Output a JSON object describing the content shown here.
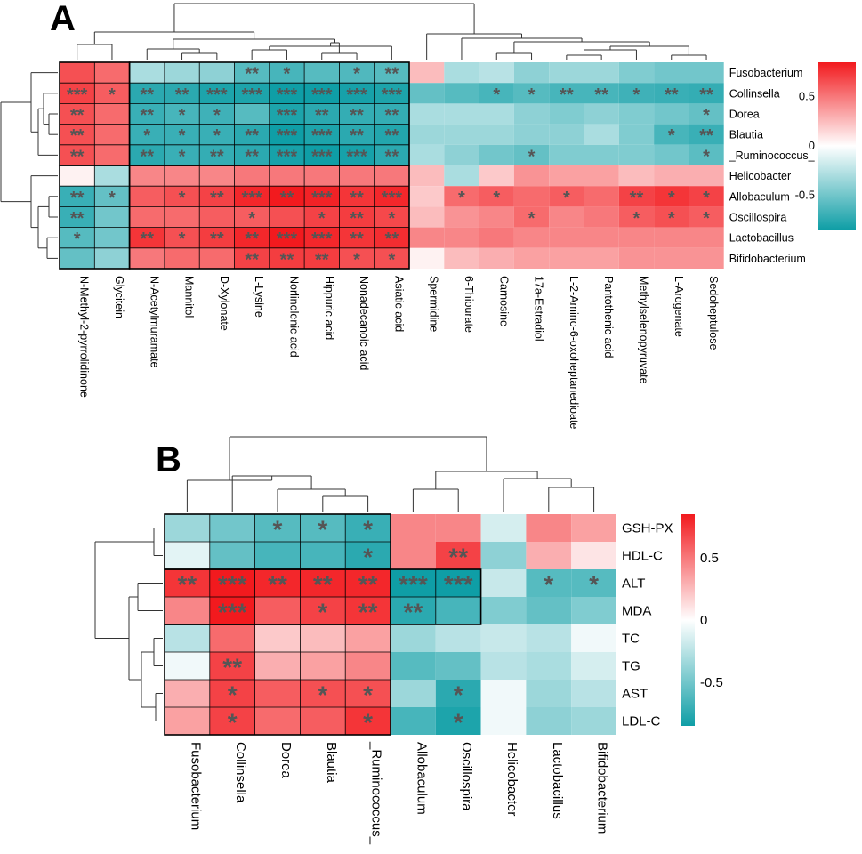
{
  "chart_data": [
    {
      "type": "heatmap",
      "panel": "A",
      "rows": [
        "Fusobacterium",
        "Collinsella",
        "Dorea",
        "Blautia",
        "_Ruminococcus_",
        "Helicobacter",
        "Allobaculum",
        "Oscillospira",
        "Lactobacillus",
        "Bifidobacterium"
      ],
      "columns": [
        "N-Methyl-2-pyrrolidinone",
        "Glycitein",
        "N-Acetylmuramate",
        "Mannitol",
        "D-Xylonate",
        "L-Lysine",
        "Norlinolenic acid",
        "Hippuric acid",
        "Nonadecanoic acid",
        "Asiatic acid",
        "Spermidine",
        "6-Thiourate",
        "Carnosine",
        "17a-Estradiol",
        "L-2-Amino-6-oxoheptanedioate",
        "Pantothenic acid",
        "Methylselenopyruvate",
        "L-Arogenate",
        "Sedoheptulose"
      ],
      "values": [
        [
          0.65,
          0.55,
          -0.3,
          -0.35,
          -0.4,
          -0.6,
          -0.65,
          -0.6,
          -0.62,
          -0.6,
          0.25,
          -0.3,
          -0.25,
          -0.4,
          -0.35,
          -0.35,
          -0.45,
          -0.5,
          -0.5
        ],
        [
          0.7,
          0.6,
          -0.75,
          -0.75,
          -0.8,
          -0.8,
          -0.85,
          -0.85,
          -0.82,
          -0.8,
          -0.55,
          -0.6,
          -0.65,
          -0.6,
          -0.65,
          -0.65,
          -0.68,
          -0.7,
          -0.72
        ],
        [
          0.65,
          0.55,
          -0.7,
          -0.65,
          -0.68,
          -0.6,
          -0.8,
          -0.75,
          -0.72,
          -0.72,
          -0.3,
          -0.3,
          -0.3,
          -0.4,
          -0.45,
          -0.4,
          -0.45,
          -0.5,
          -0.55
        ],
        [
          0.65,
          0.55,
          -0.7,
          -0.7,
          -0.7,
          -0.75,
          -0.85,
          -0.8,
          -0.75,
          -0.78,
          -0.35,
          -0.35,
          -0.35,
          -0.4,
          -0.4,
          -0.3,
          -0.45,
          -0.65,
          -0.7
        ],
        [
          0.65,
          0.55,
          -0.75,
          -0.7,
          -0.72,
          -0.75,
          -0.82,
          -0.85,
          -0.82,
          -0.75,
          -0.3,
          -0.4,
          -0.5,
          -0.55,
          -0.45,
          -0.45,
          -0.45,
          -0.5,
          -0.58
        ],
        [
          0.05,
          -0.3,
          0.45,
          0.45,
          0.45,
          0.5,
          0.5,
          0.5,
          0.5,
          0.5,
          0.25,
          -0.3,
          0.2,
          0.4,
          0.35,
          0.35,
          0.25,
          0.3,
          0.3
        ],
        [
          -0.7,
          -0.55,
          0.6,
          0.65,
          0.7,
          0.8,
          0.85,
          0.82,
          0.75,
          0.8,
          0.2,
          0.55,
          0.6,
          0.55,
          0.6,
          0.55,
          0.7,
          0.75,
          0.7
        ],
        [
          -0.7,
          -0.5,
          0.55,
          0.55,
          0.6,
          0.6,
          0.65,
          0.7,
          0.72,
          0.68,
          0.25,
          0.4,
          0.45,
          0.55,
          0.45,
          0.5,
          0.6,
          0.65,
          0.6
        ],
        [
          -0.6,
          -0.5,
          0.75,
          0.65,
          0.72,
          0.8,
          0.85,
          0.8,
          0.75,
          0.78,
          0.45,
          0.45,
          0.5,
          0.45,
          0.45,
          0.45,
          0.45,
          0.45,
          0.45
        ],
        [
          -0.55,
          -0.4,
          0.5,
          0.55,
          0.55,
          0.7,
          0.72,
          0.72,
          0.65,
          0.65,
          0.05,
          0.25,
          0.3,
          0.35,
          0.35,
          0.35,
          0.4,
          0.4,
          0.4
        ]
      ],
      "significance": [
        [
          "",
          "",
          "",
          "",
          "",
          "**",
          "*",
          "",
          "*",
          "**",
          "",
          "",
          "",
          "",
          "",
          "",
          "",
          "",
          ""
        ],
        [
          "***",
          "*",
          "**",
          "**",
          "***",
          "***",
          "***",
          "***",
          "***",
          "***",
          "",
          "",
          "*",
          "*",
          "**",
          "**",
          "*",
          "**",
          "**"
        ],
        [
          "**",
          "",
          "**",
          "*",
          "*",
          "",
          "***",
          "**",
          "**",
          "**",
          "",
          "",
          "",
          "",
          "",
          "",
          "",
          "",
          "*"
        ],
        [
          "**",
          "",
          "*",
          "*",
          "*",
          "**",
          "***",
          "***",
          "**",
          "**",
          "",
          "",
          "",
          "",
          "",
          "",
          "",
          "*",
          "**"
        ],
        [
          "**",
          "",
          "**",
          "*",
          "**",
          "**",
          "***",
          "***",
          "***",
          "**",
          "",
          "",
          "",
          "*",
          "",
          "",
          "",
          "",
          "*"
        ],
        [
          "",
          "",
          "",
          "",
          "",
          "",
          "",
          "",
          "",
          "",
          "",
          "",
          "",
          "",
          "",
          "",
          "",
          "",
          ""
        ],
        [
          "**",
          "*",
          "",
          "*",
          "**",
          "***",
          "**",
          "***",
          "**",
          "***",
          "",
          "*",
          "*",
          "",
          "*",
          "",
          "**",
          "*",
          "*"
        ],
        [
          "**",
          "",
          "",
          "",
          "",
          "*",
          "",
          "*",
          "**",
          "*",
          "",
          "",
          "",
          "*",
          "",
          "",
          "*",
          "*",
          "*"
        ],
        [
          "*",
          "",
          "**",
          "*",
          "**",
          "**",
          "***",
          "***",
          "**",
          "**",
          "",
          "",
          "",
          "",
          "",
          "",
          "",
          "",
          ""
        ],
        [
          "",
          "",
          "",
          "",
          "",
          "**",
          "**",
          "**",
          "*",
          "*",
          "",
          "",
          "",
          "",
          "",
          "",
          "",
          "",
          ""
        ]
      ],
      "colorbar_ticks": [
        0.5,
        0,
        -0.5
      ],
      "colorbar_tick_labels": [
        "0.5",
        "0",
        "-0.5"
      ],
      "range": [
        -0.85,
        0.85
      ],
      "colors": {
        "low": "#0f9ea6",
        "mid": "#ffffff",
        "high": "#f21a1e"
      }
    },
    {
      "type": "heatmap",
      "panel": "B",
      "rows": [
        "GSH-PX",
        "HDL-C",
        "ALT",
        "MDA",
        "TC",
        "TG",
        "AST",
        "LDL-C"
      ],
      "columns": [
        "Fusobacterium",
        "Collinsella",
        "Dorea",
        "Blautia",
        "_Ruminococcus_",
        "Allobaculum",
        "Oscillospira",
        "Helicobacter",
        "Lactobacillus",
        "Bifidobacterium"
      ],
      "values": [
        [
          -0.35,
          -0.5,
          -0.6,
          -0.6,
          -0.7,
          0.45,
          0.45,
          -0.15,
          0.45,
          0.35
        ],
        [
          -0.1,
          -0.55,
          -0.65,
          -0.65,
          -0.75,
          0.45,
          0.7,
          -0.4,
          0.3,
          0.1
        ],
        [
          0.75,
          0.85,
          0.8,
          0.8,
          0.8,
          -0.85,
          -0.85,
          -0.2,
          -0.6,
          -0.6
        ],
        [
          0.45,
          0.85,
          0.6,
          0.7,
          0.75,
          -0.75,
          -0.65,
          -0.45,
          -0.55,
          -0.45
        ],
        [
          -0.25,
          0.55,
          0.2,
          0.25,
          0.35,
          -0.35,
          -0.25,
          -0.2,
          -0.25,
          -0.05
        ],
        [
          -0.05,
          0.7,
          0.3,
          0.35,
          0.45,
          -0.6,
          -0.55,
          -0.25,
          -0.3,
          -0.15
        ],
        [
          0.3,
          0.7,
          0.6,
          0.65,
          0.65,
          -0.35,
          -0.75,
          -0.05,
          -0.35,
          -0.25
        ],
        [
          0.35,
          0.7,
          0.55,
          0.6,
          0.75,
          -0.65,
          -0.8,
          -0.05,
          -0.4,
          -0.35
        ]
      ],
      "significance": [
        [
          "",
          "",
          "*",
          "*",
          "*",
          "",
          "",
          "",
          "",
          ""
        ],
        [
          "",
          "",
          "",
          "",
          "*",
          "",
          "**",
          "",
          "",
          ""
        ],
        [
          "**",
          "***",
          "**",
          "**",
          "**",
          "***",
          "***",
          "",
          "*",
          "*"
        ],
        [
          "",
          "***",
          "",
          "*",
          "**",
          "**",
          "",
          "",
          "",
          ""
        ],
        [
          "",
          "",
          "",
          "",
          "",
          "",
          "",
          "",
          "",
          ""
        ],
        [
          "",
          "**",
          "",
          "",
          "",
          "",
          "",
          "",
          "",
          ""
        ],
        [
          "",
          "*",
          "",
          "*",
          "*",
          "",
          "*",
          "",
          "",
          ""
        ],
        [
          "",
          "*",
          "",
          "",
          "*",
          "",
          "*",
          "",
          "",
          ""
        ]
      ],
      "colorbar_ticks": [
        0.5,
        0,
        -0.5
      ],
      "colorbar_tick_labels": [
        "0.5",
        "0",
        "-0.5"
      ],
      "range": [
        -0.85,
        0.85
      ],
      "colors": {
        "low": "#0f9ea6",
        "mid": "#ffffff",
        "high": "#f21a1e"
      }
    }
  ],
  "panel_labels": [
    "A",
    "B"
  ]
}
